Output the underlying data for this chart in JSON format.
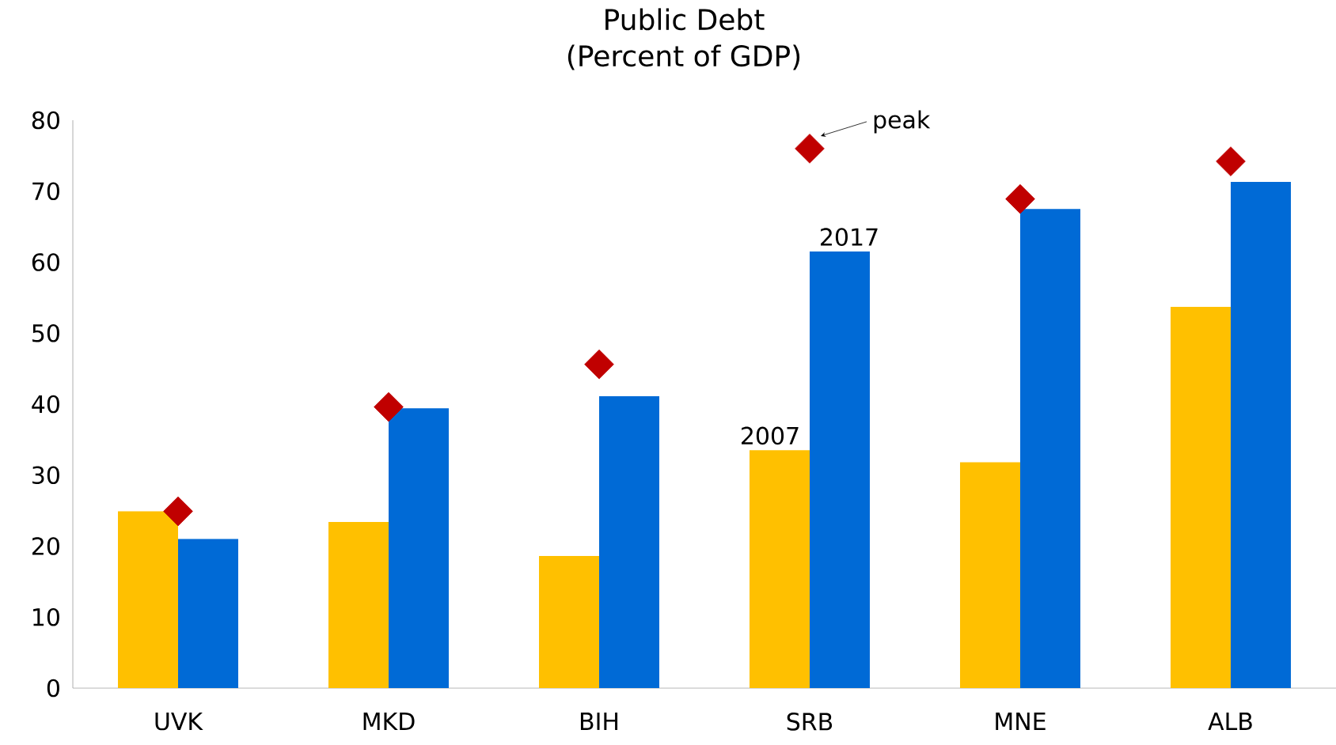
{
  "chart_data": {
    "type": "bar",
    "title": "Public Debt\n(Percent of GDP)",
    "categories": [
      "UVK",
      "MKD",
      "BIH",
      "SRB",
      "MNE",
      "ALB"
    ],
    "series": [
      {
        "name": "2007",
        "color": "#ffc000",
        "values": [
          24.9,
          23.4,
          18.6,
          33.5,
          31.8,
          53.7
        ]
      },
      {
        "name": "2017",
        "color": "#006ad6",
        "values": [
          21.0,
          39.4,
          41.1,
          61.5,
          67.5,
          71.3
        ]
      },
      {
        "name": "peak",
        "type": "scatter",
        "marker": "diamond",
        "color": "#c00000",
        "values": [
          24.9,
          39.6,
          45.6,
          76.0,
          68.9,
          74.2
        ]
      }
    ],
    "ylim": [
      0,
      80
    ],
    "yticks": [
      0,
      10,
      20,
      30,
      40,
      50,
      60,
      70,
      80
    ],
    "grid": false
  }
}
